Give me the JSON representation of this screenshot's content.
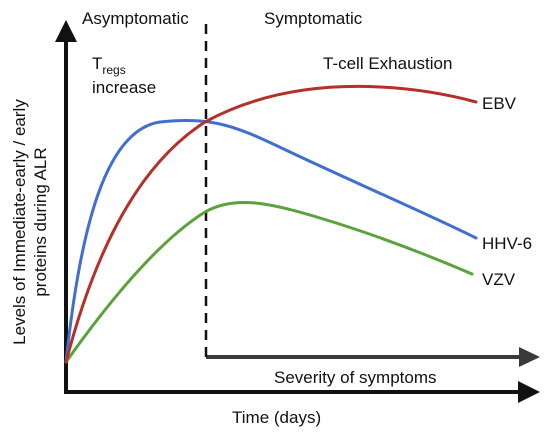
{
  "phases": {
    "asymptomatic": "Asymptomatic",
    "symptomatic": "Symptomatic"
  },
  "annotations": {
    "tregs_main": "T",
    "tregs_sub": "regs",
    "tregs_line2": "increase",
    "exhaustion": "T-cell Exhaustion",
    "severity": "Severity of symptoms"
  },
  "axes": {
    "x_label": "Time (days)",
    "y_label_line1": "Levels of Immediate-early / early",
    "y_label_line2": "proteins during ALR"
  },
  "curves": [
    {
      "name": "EBV",
      "color": "#b5302a"
    },
    {
      "name": "HHV-6",
      "color": "#3f6fd1"
    },
    {
      "name": "VZV",
      "color": "#5aa23a"
    }
  ]
}
